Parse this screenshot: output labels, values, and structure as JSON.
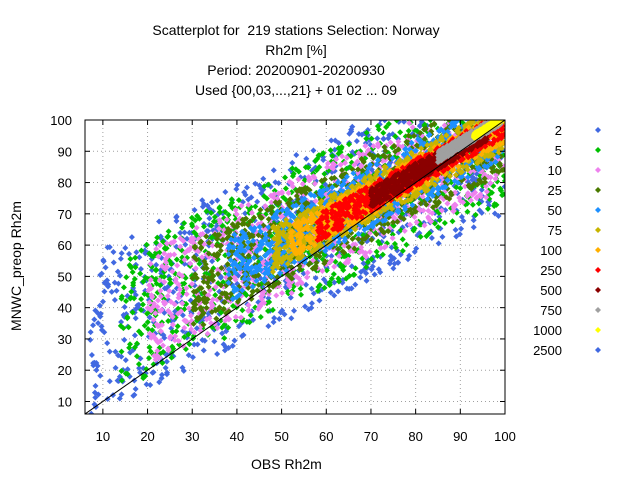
{
  "chart_data": {
    "type": "scatter",
    "title": [
      "Scatterplot for  219 stations Selection: Norway",
      "Rh2m [%]",
      "Period: 20200901-20200930",
      "Used {00,03,...,21} + 01 02 ... 09"
    ],
    "xlabel": "OBS Rh2m",
    "ylabel": "MNWC_preop Rh2m",
    "xlim": [
      6,
      100
    ],
    "ylim": [
      6,
      100
    ],
    "x_ticks": [
      10,
      20,
      30,
      40,
      50,
      60,
      70,
      80,
      90,
      100
    ],
    "y_ticks": [
      10,
      20,
      30,
      40,
      50,
      60,
      70,
      80,
      90,
      100
    ],
    "grid": true,
    "diagonal_line": true,
    "legend_position": "right",
    "legend": [
      {
        "label": "2",
        "color": "#4169e1"
      },
      {
        "label": "5",
        "color": "#00c000"
      },
      {
        "label": "10",
        "color": "#ee82ee"
      },
      {
        "label": "25",
        "color": "#4a7a00"
      },
      {
        "label": "50",
        "color": "#1e90ff"
      },
      {
        "label": "75",
        "color": "#c8b400"
      },
      {
        "label": "100",
        "color": "#ffb000"
      },
      {
        "label": "250",
        "color": "#ff0000"
      },
      {
        "label": "500",
        "color": "#8b0000"
      },
      {
        "label": "750",
        "color": "#a0a0a0"
      },
      {
        "label": "1000",
        "color": "#ffff00"
      },
      {
        "label": "2500",
        "color": "#4169e1"
      }
    ],
    "density_bands": [
      {
        "level": "2",
        "center_offset": 0,
        "slope": 0.7,
        "intercept": 26,
        "width": 26,
        "x_range": [
          7,
          100
        ]
      },
      {
        "level": "5",
        "slope": 0.7,
        "intercept": 26,
        "width": 22,
        "x_range": [
          14,
          100
        ]
      },
      {
        "level": "10",
        "slope": 0.7,
        "intercept": 26,
        "width": 18,
        "x_range": [
          20,
          100
        ]
      },
      {
        "level": "25",
        "slope": 0.72,
        "intercept": 25,
        "width": 14,
        "x_range": [
          30,
          100
        ]
      },
      {
        "level": "50",
        "slope": 0.74,
        "intercept": 24,
        "width": 10.5,
        "x_range": [
          38,
          100
        ]
      },
      {
        "level": "75",
        "slope": 0.76,
        "intercept": 22,
        "width": 7.5,
        "x_range": [
          48,
          100
        ]
      },
      {
        "level": "100",
        "slope": 0.78,
        "intercept": 20.5,
        "width": 5.5,
        "x_range": [
          52,
          100
        ]
      },
      {
        "level": "250",
        "slope": 0.8,
        "intercept": 19,
        "width": 4.5,
        "x_range": [
          58,
          100
        ]
      },
      {
        "level": "500",
        "slope": 0.82,
        "intercept": 17.5,
        "width": 3,
        "x_range": [
          70,
          96
        ]
      },
      {
        "level": "750",
        "slope": 0.85,
        "intercept": 16,
        "width": 1.8,
        "x_range": [
          85,
          99
        ]
      },
      {
        "level": "1000",
        "slope": 0.88,
        "intercept": 13,
        "width": 0.8,
        "x_range": [
          93,
          100
        ]
      }
    ]
  }
}
